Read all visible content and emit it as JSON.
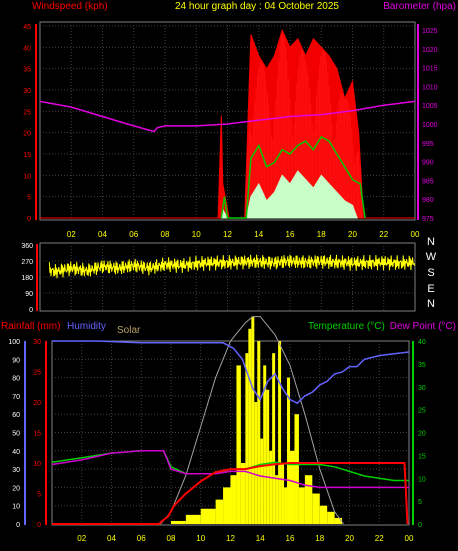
{
  "title": "24 hour graph day : 04 October 2025",
  "colors": {
    "wind": "#ff0000",
    "gust": "#ff0000",
    "wind_avg": "#00c800",
    "wind_low": "#c8ffc8",
    "baro": "#e000e0",
    "dir": "#ffff00",
    "rain": "#ff0000",
    "humidity": "#6464ff",
    "solar": "#ffff00",
    "solar_max": "#a0a0a0",
    "temp": "#00d000",
    "dew": "#d000d0",
    "grid": "#404040"
  },
  "x_ticks": [
    "02",
    "04",
    "06",
    "08",
    "10",
    "12",
    "14",
    "16",
    "18",
    "20",
    "22",
    "00"
  ],
  "chart_data": [
    {
      "type": "line",
      "name": "wind-baro",
      "labels": {
        "left": "Windspeed (kph)",
        "right": "Barometer (hpa)"
      },
      "y_left": {
        "ticks": [
          0,
          5,
          10,
          15,
          20,
          25,
          30,
          35,
          40,
          45
        ],
        "ylim": [
          0,
          45
        ]
      },
      "y_right": {
        "ticks": [
          975,
          980,
          985,
          990,
          995,
          1000,
          1005,
          1010,
          1015,
          1020,
          1025
        ],
        "ylim": [
          975,
          1025
        ]
      },
      "barometer": {
        "x": [
          0,
          2,
          4,
          6,
          7.3,
          7.5,
          8,
          10,
          12,
          14,
          16,
          18,
          20,
          22,
          24
        ],
        "y": [
          1006,
          1004.5,
          1002,
          999.5,
          998,
          999,
          999.5,
          999.5,
          1000,
          1001,
          1002,
          1002.5,
          1003.5,
          1005,
          1006
        ]
      },
      "gust_max": {
        "x": [
          11.4,
          11.6,
          11.7,
          12.1,
          13.1,
          13.5,
          14,
          14.5,
          15,
          15.5,
          16,
          16.5,
          17,
          17.5,
          18,
          18.5,
          19,
          19.5,
          20,
          20.4,
          20.7
        ],
        "y": [
          0,
          24,
          8,
          0,
          0,
          43,
          38,
          35,
          38,
          44,
          40,
          42,
          38,
          42,
          40,
          38,
          35,
          28,
          32,
          20,
          0
        ]
      },
      "wind_avg": {
        "x": [
          11.6,
          11.8,
          12,
          13.2,
          13.5,
          14,
          14.5,
          15,
          15.5,
          16,
          16.5,
          17,
          17.5,
          18,
          18.5,
          19,
          19.5,
          20,
          20.5,
          20.8
        ],
        "y": [
          0,
          5,
          0,
          0,
          14,
          17,
          12,
          13,
          16,
          15,
          17,
          18,
          16,
          19,
          18,
          15,
          12,
          9,
          8,
          0
        ]
      },
      "wind_low": {
        "x": [
          11.6,
          11.7,
          12,
          13.2,
          13.5,
          14,
          14.5,
          15,
          15.5,
          16,
          16.5,
          17,
          17.5,
          18,
          18.5,
          19,
          19.5,
          20,
          20.3
        ],
        "y": [
          0,
          2,
          0,
          0,
          5,
          8,
          4,
          6,
          10,
          8,
          11,
          9,
          7,
          10,
          8,
          6,
          4,
          3,
          0
        ]
      }
    },
    {
      "type": "line",
      "name": "wind-direction",
      "labels": {
        "right": [
          "N",
          "W",
          "S",
          "E",
          "N"
        ]
      },
      "y": {
        "ticks": [
          0,
          90,
          180,
          270,
          360
        ],
        "ylim": [
          0,
          360
        ]
      },
      "direction": {
        "x": [
          0,
          1,
          2,
          3,
          4,
          5,
          6,
          7,
          8,
          9,
          10,
          11,
          12,
          13,
          14,
          15,
          16,
          17,
          18,
          19,
          20,
          21,
          22,
          23,
          24
        ],
        "y": [
          235,
          210,
          230,
          215,
          240,
          230,
          245,
          230,
          250,
          245,
          255,
          260,
          260,
          265,
          265,
          260,
          270,
          262,
          268,
          262,
          258,
          260,
          262,
          258,
          262
        ]
      }
    },
    {
      "type": "line",
      "name": "rain-humidity-solar-temp",
      "labels": {
        "rainfall": "Rainfall (mm)",
        "humidity": "Humidity",
        "solar": "Solar",
        "temp": "Temperature (°C)",
        "dew": "Dew Point (°C)"
      },
      "y_left": {
        "ticks": [
          0,
          10,
          20,
          30,
          40,
          50,
          60,
          70,
          80,
          90,
          100
        ],
        "ylim": [
          0,
          100
        ]
      },
      "y_mid": {
        "ticks": [
          0,
          5,
          10,
          15,
          20,
          25,
          30
        ],
        "ylim": [
          0,
          30
        ]
      },
      "y_right": {
        "ticks": [
          0,
          5,
          10,
          15,
          20,
          25,
          30,
          35,
          40
        ],
        "ylim": [
          0,
          40
        ]
      },
      "humidity": {
        "x": [
          0,
          3,
          6,
          9,
          11.5,
          12.2,
          12.8,
          13.5,
          14,
          14.5,
          15,
          15.5,
          16,
          16.5,
          17,
          17.5,
          18,
          18.5,
          19,
          19.5,
          20,
          20.5,
          21,
          22,
          23,
          24
        ],
        "y": [
          100,
          100,
          99,
          99,
          99,
          96,
          90,
          74,
          68,
          78,
          82,
          74,
          68,
          66,
          70,
          72,
          76,
          78,
          82,
          83,
          86,
          86,
          90,
          92,
          93,
          94
        ]
      },
      "temperature": {
        "x": [
          0,
          2,
          4,
          6,
          7.5,
          8,
          9,
          10,
          11,
          12,
          13,
          14,
          15,
          16,
          17,
          18,
          19,
          20,
          21,
          22,
          23,
          24
        ],
        "y": [
          13.5,
          14.5,
          15.5,
          16,
          16,
          12.5,
          11,
          11,
          11,
          12,
          12,
          13,
          13.5,
          13,
          13,
          13,
          12.5,
          11.5,
          10.5,
          10,
          9.5,
          9.5
        ]
      },
      "dew_point": {
        "x": [
          0,
          2,
          4,
          6,
          7.5,
          8,
          9,
          10,
          11,
          12,
          13,
          14,
          15,
          16,
          17,
          18,
          19,
          20,
          21,
          22,
          23,
          24
        ],
        "y": [
          13,
          14,
          15.5,
          16,
          16,
          12,
          11,
          11,
          11,
          11.5,
          11.5,
          10.5,
          10,
          9.5,
          8.5,
          8,
          8,
          8,
          8,
          8,
          8,
          8
        ]
      },
      "rainfall": {
        "x": [
          0,
          7.2,
          7.4,
          7.8,
          8.2,
          9,
          10,
          11,
          12,
          13,
          14,
          15,
          16,
          17,
          18,
          19,
          20,
          21,
          22,
          23,
          23.7,
          23.9
        ],
        "y": [
          0,
          0,
          0.5,
          1.2,
          3,
          5,
          7,
          8.5,
          9,
          9,
          9.5,
          9.8,
          10,
          10,
          10,
          10,
          10,
          10,
          10,
          10,
          10,
          0
        ]
      },
      "solar_max": {
        "x": [
          7.3,
          8,
          9,
          10,
          11,
          12,
          13,
          13.5,
          14,
          15,
          16,
          17,
          18,
          19,
          19.6
        ],
        "y": [
          0,
          2,
          8,
          16,
          24,
          30,
          33,
          34,
          34,
          31,
          26,
          18,
          9,
          2,
          0
        ]
      },
      "solar": {
        "x": [
          7.3,
          8,
          9,
          10,
          11,
          11.5,
          12,
          12.4,
          12.7,
          13,
          13.2,
          13.4,
          13.6,
          13.8,
          14,
          14.2,
          14.4,
          14.6,
          14.8,
          15,
          15.2,
          15.4,
          15.6,
          15.8,
          16,
          16.3,
          16.6,
          17,
          17.5,
          18,
          18.5,
          19,
          19.5
        ],
        "y": [
          0,
          0.5,
          1.5,
          2.5,
          4,
          6,
          8,
          26,
          10,
          28,
          32,
          34,
          20,
          30,
          14,
          26,
          22,
          12,
          28,
          8,
          30,
          10,
          6,
          24,
          12,
          18,
          6,
          8,
          5,
          3,
          2,
          1,
          0
        ]
      }
    }
  ]
}
